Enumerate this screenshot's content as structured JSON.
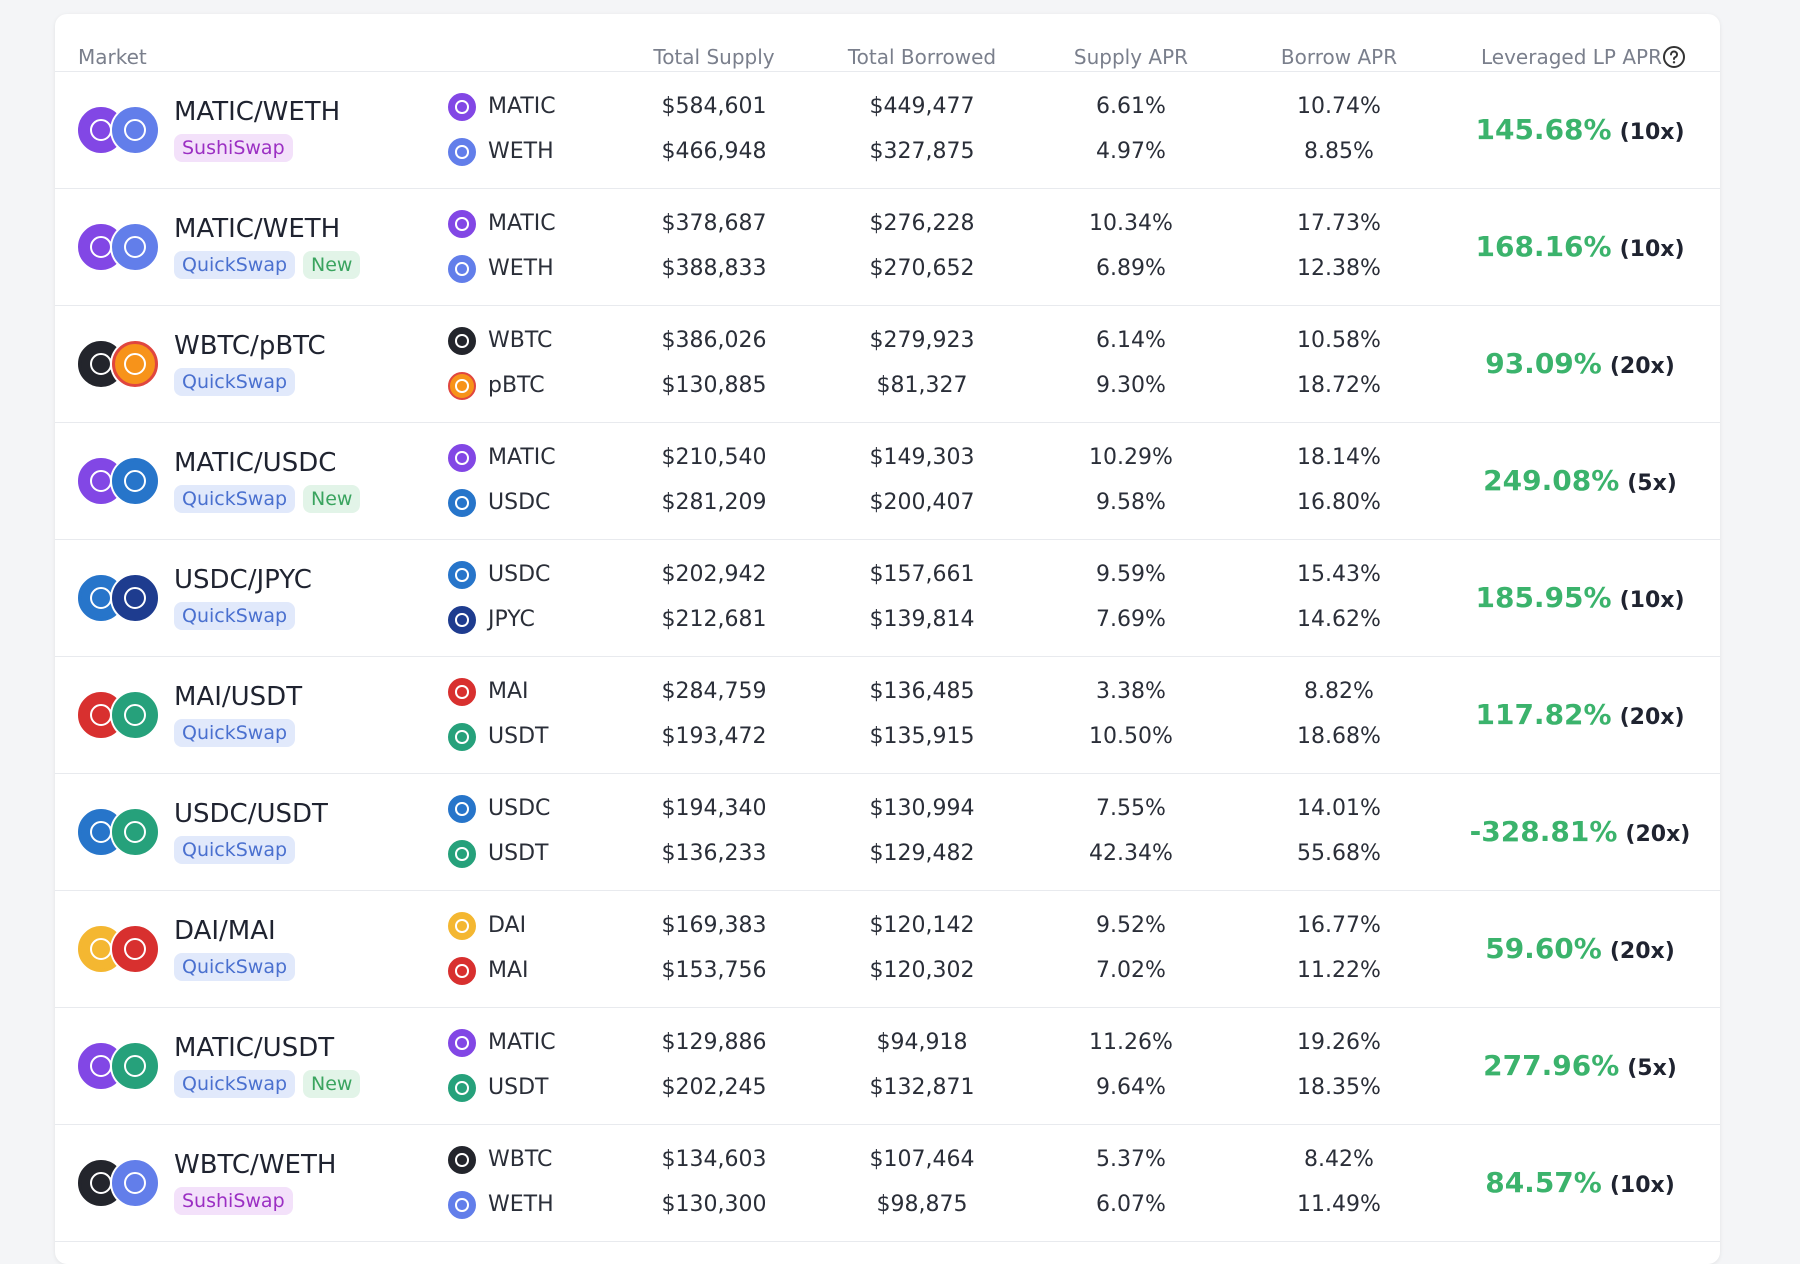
{
  "header": {
    "columns": [
      "Market",
      "Total Supply",
      "Total Borrowed",
      "Supply APR",
      "Borrow APR",
      "Leveraged LP APR"
    ]
  },
  "rows": [
    {
      "market": "MATIC/WETH",
      "dex": "SushiSwap",
      "tokens": [
        {
          "symbol": "MATIC",
          "total_supply": "$584,601",
          "total_borrowed": "$449,477",
          "supply_apr": "6.61%",
          "borrow_apr": "10.74%"
        },
        {
          "symbol": "WETH",
          "total_supply": "$466,948",
          "total_borrowed": "$327,875",
          "supply_apr": "4.97%",
          "borrow_apr": "8.85%"
        }
      ],
      "lp_apr": "145.68%",
      "leverage": "(10x)"
    },
    {
      "market": "MATIC/WETH",
      "dex": "QuickSwap",
      "badge": "New",
      "tokens": [
        {
          "symbol": "MATIC",
          "total_supply": "$378,687",
          "total_borrowed": "$276,228",
          "supply_apr": "10.34%",
          "borrow_apr": "17.73%"
        },
        {
          "symbol": "WETH",
          "total_supply": "$388,833",
          "total_borrowed": "$270,652",
          "supply_apr": "6.89%",
          "borrow_apr": "12.38%"
        }
      ],
      "lp_apr": "168.16%",
      "leverage": "(10x)"
    },
    {
      "market": "WBTC/pBTC",
      "dex": "QuickSwap",
      "tokens": [
        {
          "symbol": "WBTC",
          "total_supply": "$386,026",
          "total_borrowed": "$279,923",
          "supply_apr": "6.14%",
          "borrow_apr": "10.58%"
        },
        {
          "symbol": "pBTC",
          "total_supply": "$130,885",
          "total_borrowed": "$81,327",
          "supply_apr": "9.30%",
          "borrow_apr": "18.72%"
        }
      ],
      "lp_apr": "93.09%",
      "leverage": "(20x)"
    },
    {
      "market": "MATIC/USDC",
      "dex": "QuickSwap",
      "badge": "New",
      "tokens": [
        {
          "symbol": "MATIC",
          "total_supply": "$210,540",
          "total_borrowed": "$149,303",
          "supply_apr": "10.29%",
          "borrow_apr": "18.14%"
        },
        {
          "symbol": "USDC",
          "total_supply": "$281,209",
          "total_borrowed": "$200,407",
          "supply_apr": "9.58%",
          "borrow_apr": "16.80%"
        }
      ],
      "lp_apr": "249.08%",
      "leverage": "(5x)"
    },
    {
      "market": "USDC/JPYC",
      "dex": "QuickSwap",
      "tokens": [
        {
          "symbol": "USDC",
          "total_supply": "$202,942",
          "total_borrowed": "$157,661",
          "supply_apr": "9.59%",
          "borrow_apr": "15.43%"
        },
        {
          "symbol": "JPYC",
          "total_supply": "$212,681",
          "total_borrowed": "$139,814",
          "supply_apr": "7.69%",
          "borrow_apr": "14.62%"
        }
      ],
      "lp_apr": "185.95%",
      "leverage": "(10x)"
    },
    {
      "market": "MAI/USDT",
      "dex": "QuickSwap",
      "tokens": [
        {
          "symbol": "MAI",
          "total_supply": "$284,759",
          "total_borrowed": "$136,485",
          "supply_apr": "3.38%",
          "borrow_apr": "8.82%"
        },
        {
          "symbol": "USDT",
          "total_supply": "$193,472",
          "total_borrowed": "$135,915",
          "supply_apr": "10.50%",
          "borrow_apr": "18.68%"
        }
      ],
      "lp_apr": "117.82%",
      "leverage": "(20x)"
    },
    {
      "market": "USDC/USDT",
      "dex": "QuickSwap",
      "tokens": [
        {
          "symbol": "USDC",
          "total_supply": "$194,340",
          "total_borrowed": "$130,994",
          "supply_apr": "7.55%",
          "borrow_apr": "14.01%"
        },
        {
          "symbol": "USDT",
          "total_supply": "$136,233",
          "total_borrowed": "$129,482",
          "supply_apr": "42.34%",
          "borrow_apr": "55.68%"
        }
      ],
      "lp_apr": "-328.81%",
      "leverage": "(20x)"
    },
    {
      "market": "DAI/MAI",
      "dex": "QuickSwap",
      "tokens": [
        {
          "symbol": "DAI",
          "total_supply": "$169,383",
          "total_borrowed": "$120,142",
          "supply_apr": "9.52%",
          "borrow_apr": "16.77%"
        },
        {
          "symbol": "MAI",
          "total_supply": "$153,756",
          "total_borrowed": "$120,302",
          "supply_apr": "7.02%",
          "borrow_apr": "11.22%"
        }
      ],
      "lp_apr": "59.60%",
      "leverage": "(20x)"
    },
    {
      "market": "MATIC/USDT",
      "dex": "QuickSwap",
      "badge": "New",
      "tokens": [
        {
          "symbol": "MATIC",
          "total_supply": "$129,886",
          "total_borrowed": "$94,918",
          "supply_apr": "11.26%",
          "borrow_apr": "19.26%"
        },
        {
          "symbol": "USDT",
          "total_supply": "$202,245",
          "total_borrowed": "$132,871",
          "supply_apr": "9.64%",
          "borrow_apr": "18.35%"
        }
      ],
      "lp_apr": "277.96%",
      "leverage": "(5x)"
    },
    {
      "market": "WBTC/WETH",
      "dex": "SushiSwap",
      "tokens": [
        {
          "symbol": "WBTC",
          "total_supply": "$134,603",
          "total_borrowed": "$107,464",
          "supply_apr": "5.37%",
          "borrow_apr": "8.42%"
        },
        {
          "symbol": "WETH",
          "total_supply": "$130,300",
          "total_borrowed": "$98,875",
          "supply_apr": "6.07%",
          "borrow_apr": "11.49%"
        }
      ],
      "lp_apr": "84.57%",
      "leverage": "(10x)"
    }
  ]
}
